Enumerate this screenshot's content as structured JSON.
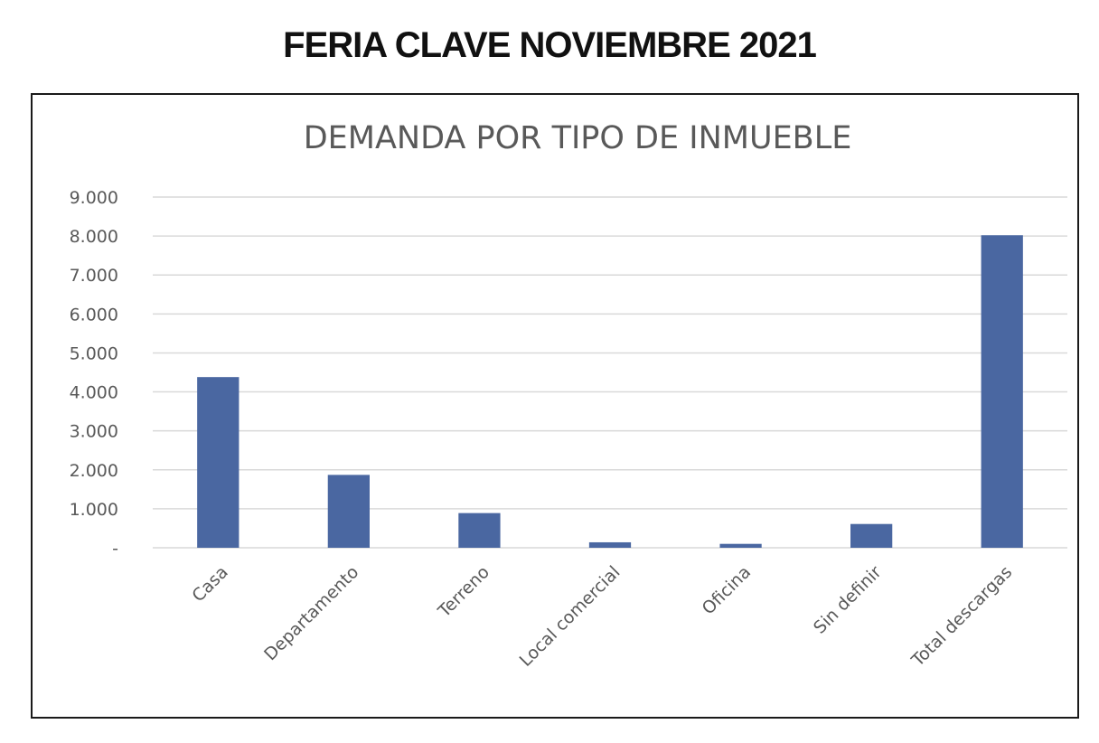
{
  "header": {
    "title": "FERIA CLAVE NOVIEMBRE 2021"
  },
  "colors": {
    "bar": "#4a67a1",
    "grid": "#d9d9d9",
    "axis_text": "#595959",
    "chart_title": "#595959"
  },
  "chart_data": {
    "type": "bar",
    "title": "DEMANDA POR TIPO DE INMUEBLE",
    "xlabel": "",
    "ylabel": "",
    "categories": [
      "Casa",
      "Departamento",
      "Terreno",
      "Local comercial",
      "Oficina",
      "Sin definir",
      "Total descargas"
    ],
    "values": [
      4380,
      1870,
      890,
      140,
      100,
      610,
      8020
    ],
    "ylim": [
      0,
      9000
    ],
    "yticks": [
      0,
      1000,
      2000,
      3000,
      4000,
      5000,
      6000,
      7000,
      8000,
      9000
    ],
    "ytick_labels": [
      "-",
      "1.000",
      "2.000",
      "3.000",
      "4.000",
      "5.000",
      "6.000",
      "7.000",
      "8.000",
      "9.000"
    ],
    "grid": true,
    "legend": "none"
  }
}
